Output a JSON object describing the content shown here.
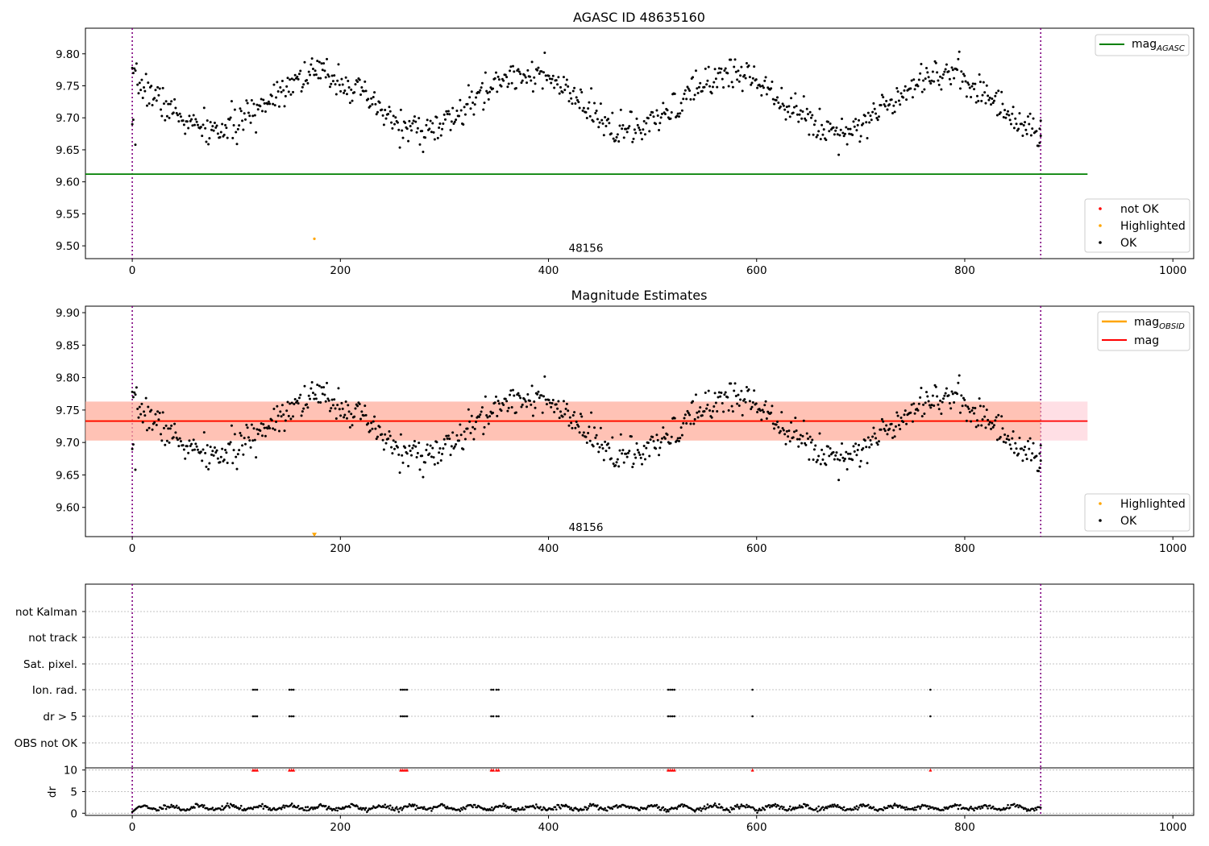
{
  "figure": {
    "background": "#ffffff",
    "colors": {
      "ok": "#000000",
      "highlighted": "#ffa500",
      "not_ok": "#ff0000",
      "mag_agasc": "#008000",
      "mag_obsid": "#ffa500",
      "mag": "#ff0000",
      "band_mag": "#ffc0cb",
      "band_obsid": "#ffa07a",
      "obs_boundary": "#800080",
      "grid": "#b0b0b0"
    }
  },
  "chart_data": [
    {
      "id": "top",
      "type": "scatter",
      "title": "AGASC ID 48635160",
      "xlim": [
        -45,
        1020
      ],
      "ylim": [
        9.48,
        9.84
      ],
      "xticks": [
        0,
        200,
        400,
        600,
        800,
        1000
      ],
      "yticks": [
        9.5,
        9.55,
        9.6,
        9.65,
        9.7,
        9.75,
        9.8
      ],
      "ytick_labels": [
        "9.50",
        "9.55",
        "9.60",
        "9.65",
        "9.70",
        "9.75",
        "9.80"
      ],
      "obs_boundaries": [
        0,
        873
      ],
      "obsid_label": {
        "text": "48156",
        "x": 436,
        "y": 9.497
      },
      "mag_agasc": {
        "value": 9.612,
        "x_range": [
          -45,
          918
        ]
      },
      "series": [
        {
          "name": "not OK",
          "points": []
        },
        {
          "name": "Highlighted",
          "points": [
            [
              175,
              9.511
            ]
          ]
        },
        {
          "name": "OK",
          "model": {
            "n": 860,
            "x_start": 0,
            "x_end": 873,
            "base": 9.725,
            "amp": 0.045,
            "period": 200,
            "phase": 0.36,
            "noise": 0.018,
            "seed": 7,
            "edge_points": [
              [
                0,
                9.69
              ],
              [
                1,
                9.697
              ],
              [
                3,
                9.658
              ],
              [
                872,
                9.683
              ],
              [
                873,
                9.672
              ]
            ]
          }
        }
      ],
      "legend_line": {
        "main": "mag",
        "sub": "AGASC"
      },
      "legend_markers": [
        "not OK",
        "Highlighted",
        "OK"
      ]
    },
    {
      "id": "middle",
      "type": "scatter",
      "title": "Magnitude Estimates",
      "xlim": [
        -45,
        1020
      ],
      "ylim": [
        9.555,
        9.91
      ],
      "xticks": [
        0,
        200,
        400,
        600,
        800,
        1000
      ],
      "yticks": [
        9.6,
        9.65,
        9.7,
        9.75,
        9.8,
        9.85,
        9.9
      ],
      "ytick_labels": [
        "9.60",
        "9.65",
        "9.70",
        "9.75",
        "9.80",
        "9.85",
        "9.90"
      ],
      "obs_boundaries": [
        0,
        873
      ],
      "obsid_label": {
        "text": "48156",
        "x": 436,
        "y": 9.57
      },
      "mag_obsid": {
        "value": 9.733,
        "band": [
          9.703,
          9.763
        ],
        "x_range": [
          -45,
          873
        ]
      },
      "mag": {
        "value": 9.733,
        "band": [
          9.703,
          9.763
        ],
        "x_range": [
          -45,
          918
        ]
      },
      "series": [
        {
          "name": "Highlighted",
          "points": [
            [
              175,
              9.556
            ]
          ]
        },
        {
          "name": "OK",
          "same_as": "top"
        }
      ],
      "legend_lines": [
        {
          "main": "mag",
          "sub": "OBSID"
        },
        {
          "main": "mag",
          "sub": ""
        }
      ],
      "legend_markers": [
        "Highlighted",
        "OK"
      ]
    },
    {
      "id": "flags",
      "type": "scatter",
      "xlim": [
        -45,
        1020
      ],
      "categories": [
        "not Kalman",
        "not track",
        "Sat. pixel.",
        "Ion. rad.",
        "dr > 5",
        "OBS not OK"
      ],
      "obs_boundaries": [
        0,
        873
      ],
      "ion_rad_x": [
        116,
        118,
        120,
        151,
        153,
        155,
        258,
        260,
        262,
        264,
        345,
        347,
        350,
        352,
        515,
        517,
        519,
        521,
        596,
        767
      ],
      "dr5_x": [
        116,
        118,
        120,
        151,
        153,
        155,
        258,
        260,
        262,
        264,
        345,
        347,
        350,
        352,
        515,
        517,
        519,
        521,
        596,
        767
      ]
    },
    {
      "id": "dr",
      "type": "scatter",
      "ylabel": "dr",
      "xlim": [
        -45,
        1020
      ],
      "ylim": [
        -0.5,
        10.5
      ],
      "xticks": [
        0,
        200,
        400,
        600,
        800,
        1000
      ],
      "yticks": [
        0,
        5,
        10
      ],
      "ytick_labels": [
        "0",
        "5",
        "10"
      ],
      "obs_boundaries": [
        0,
        873
      ],
      "clipped_markers_x": [
        116,
        118,
        120,
        151,
        153,
        155,
        258,
        260,
        262,
        264,
        345,
        347,
        350,
        352,
        515,
        517,
        519,
        521,
        596,
        767
      ],
      "clipped_value": 10,
      "dr_model": {
        "n": 860,
        "base": 1.3,
        "amp": 0.45,
        "period": 29,
        "noise": 0.25,
        "seed": 11
      }
    }
  ]
}
